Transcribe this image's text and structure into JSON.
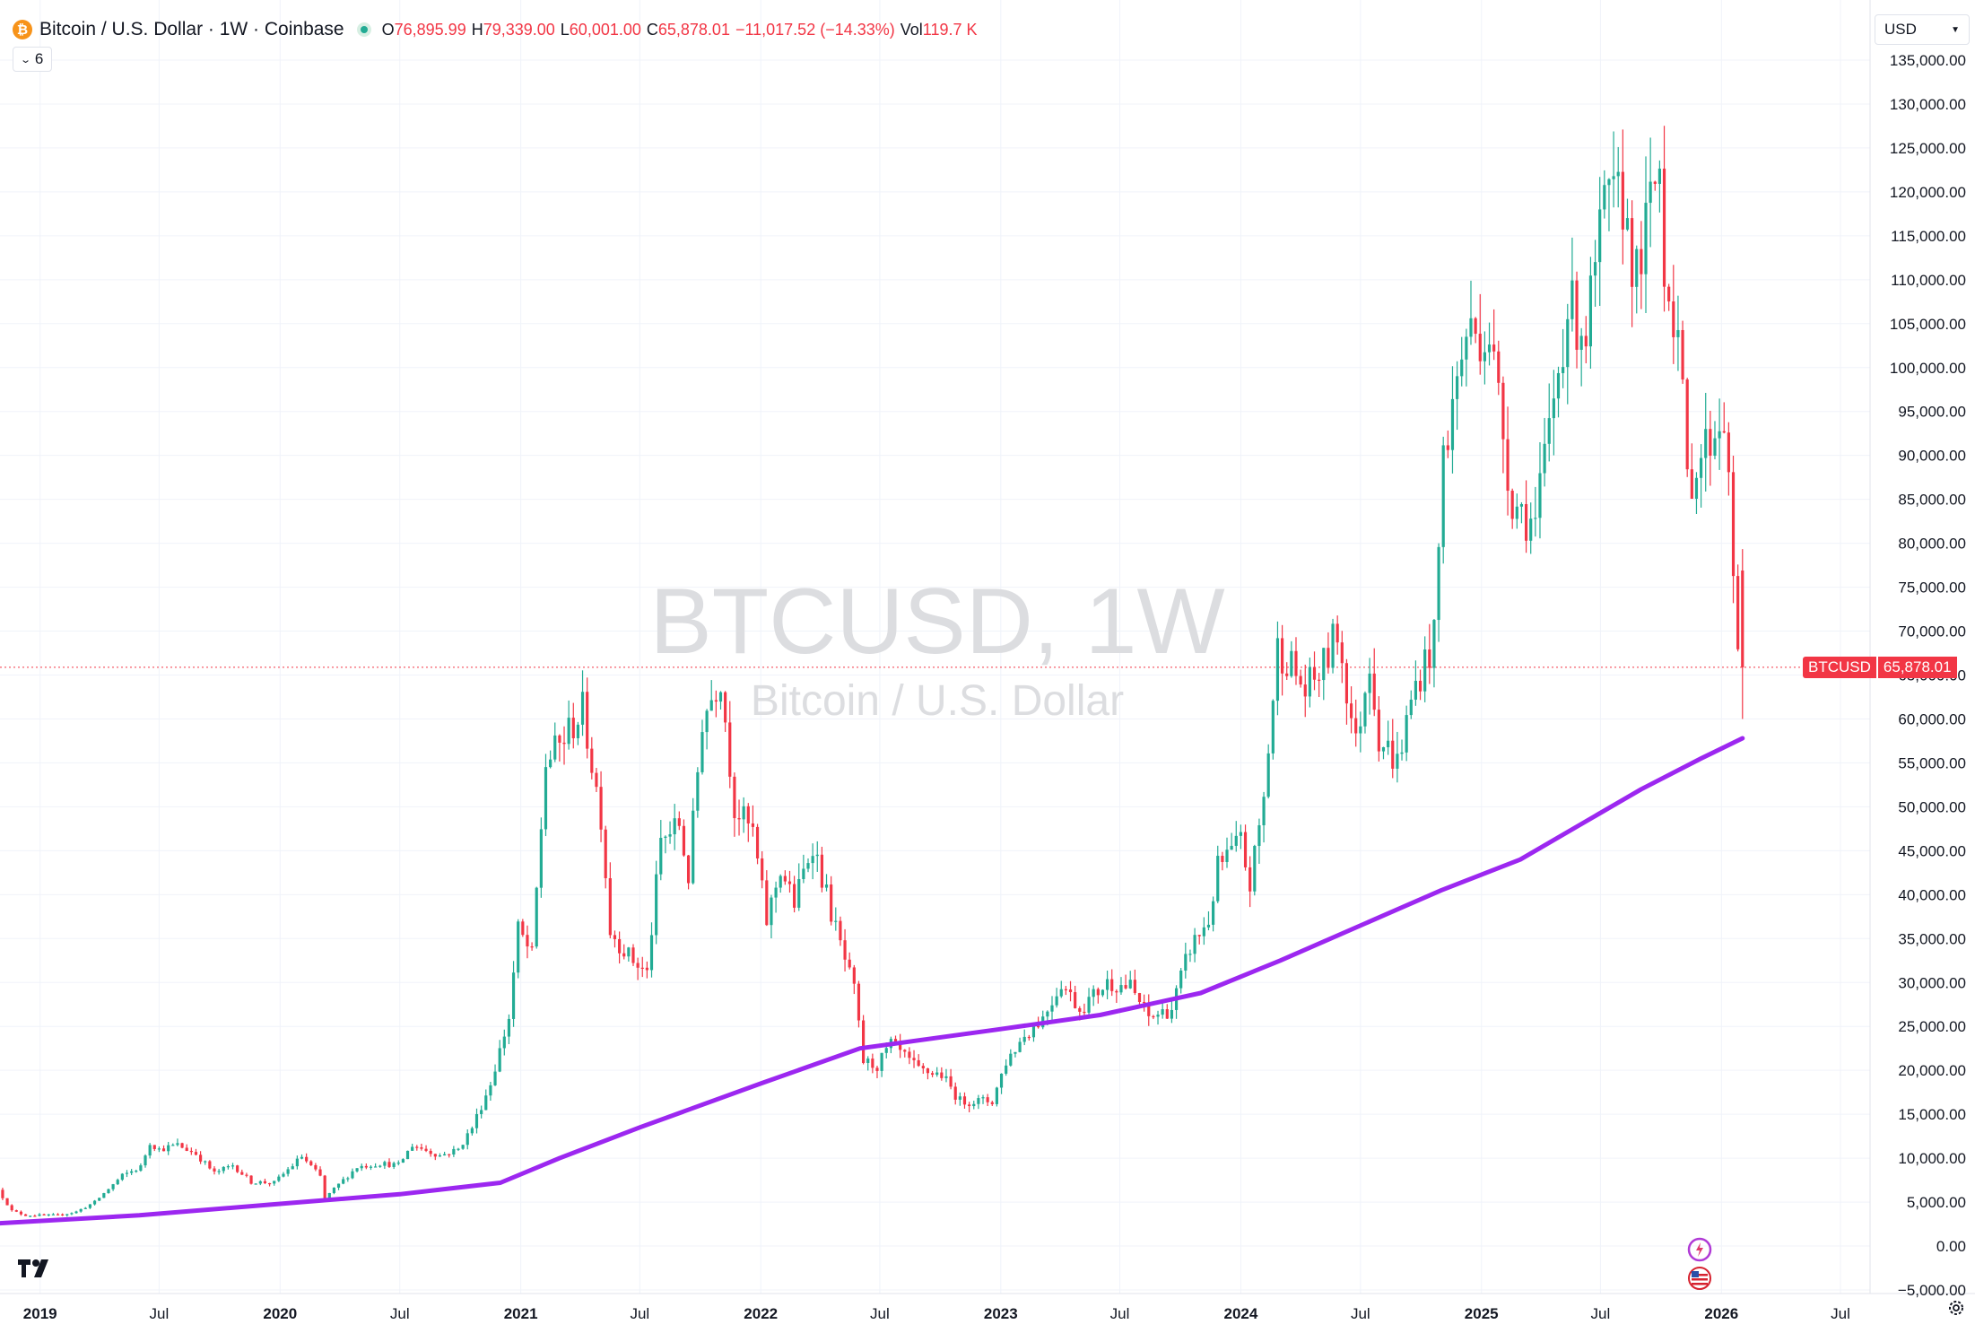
{
  "legend": {
    "symbol_title": "Bitcoin / U.S. Dollar · 1W · Coinbase",
    "open_key": "O",
    "open": "76,895.99",
    "high_key": "H",
    "high": "79,339.00",
    "low_key": "L",
    "low": "60,001.00",
    "close_key": "C",
    "close": "65,878.01",
    "change": "−11,017.52 (−14.33%)",
    "vol_key": "Vol",
    "vol": "119.7 K",
    "collapse_count": "6",
    "coin_glyph": "₿"
  },
  "currency": "USD",
  "watermark": {
    "main": "BTCUSD, 1W",
    "sub": "Bitcoin / U.S. Dollar"
  },
  "price_label": {
    "symbol": "BTCUSD",
    "price": "65,878.01"
  },
  "colors": {
    "up": "#22ab94",
    "down": "#f23645",
    "ma": "#9c27f0",
    "grid": "#f0f3fa",
    "axis_text": "#131722"
  },
  "icons": [
    "bitcoin-icon",
    "chevron-down-icon",
    "tradingview-logo-icon",
    "ai-sparkle-icon",
    "us-flag-icon",
    "gear-icon"
  ],
  "chart_data": {
    "type": "candlestick",
    "symbol": "BTCUSD",
    "interval": "1W",
    "exchange": "Coinbase",
    "y_axis": {
      "min": -5000,
      "max": 135000,
      "position": "right",
      "tick_labels": [
        "135,000.00",
        "130,000.00",
        "125,000.00",
        "120,000.00",
        "115,000.00",
        "110,000.00",
        "105,000.00",
        "100,000.00",
        "95,000.00",
        "90,000.00",
        "85,000.00",
        "80,000.00",
        "75,000.00",
        "70,000.00",
        "65,000.00",
        "60,000.00",
        "55,000.00",
        "50,000.00",
        "45,000.00",
        "40,000.00",
        "35,000.00",
        "30,000.00",
        "25,000.00",
        "20,000.00",
        "15,000.00",
        "10,000.00",
        "5,000.00",
        "0.00",
        "−5,000.00"
      ]
    },
    "x_axis": {
      "labels": [
        "2019",
        "Jul",
        "2020",
        "Jul",
        "2021",
        "Jul",
        "2022",
        "Jul",
        "2023",
        "Jul",
        "2024",
        "Jul",
        "2025",
        "Jul",
        "2026",
        "Jul"
      ],
      "label_dates": [
        "2019-01-01",
        "2019-07-01",
        "2020-01-01",
        "2020-07-01",
        "2021-01-01",
        "2021-07-01",
        "2022-01-01",
        "2022-07-01",
        "2023-01-01",
        "2023-07-01",
        "2024-01-01",
        "2024-07-01",
        "2025-01-01",
        "2025-07-01",
        "2026-01-01",
        "2026-07-01"
      ],
      "range": [
        "2018-11-01",
        "2026-08-15"
      ]
    },
    "price_series": {
      "name": "BTCUSD",
      "points": [
        [
          "2018-11-05",
          6400
        ],
        [
          "2018-11-26",
          4000
        ],
        [
          "2018-12-17",
          3500
        ],
        [
          "2019-02-04",
          3500
        ],
        [
          "2019-03-04",
          3900
        ],
        [
          "2019-04-01",
          5000
        ],
        [
          "2019-05-13",
          8000
        ],
        [
          "2019-06-10",
          9000
        ],
        [
          "2019-06-24",
          11800
        ],
        [
          "2019-07-08",
          11000
        ],
        [
          "2019-08-05",
          11500
        ],
        [
          "2019-09-02",
          10500
        ],
        [
          "2019-09-30",
          8300
        ],
        [
          "2019-10-28",
          9200
        ],
        [
          "2019-11-25",
          7300
        ],
        [
          "2019-12-30",
          7200
        ],
        [
          "2020-02-10",
          10200
        ],
        [
          "2020-03-09",
          7900
        ],
        [
          "2020-03-16",
          5400
        ],
        [
          "2020-04-06",
          7000
        ],
        [
          "2020-05-04",
          9000
        ],
        [
          "2020-06-08",
          9400
        ],
        [
          "2020-07-06",
          9200
        ],
        [
          "2020-07-27",
          11500
        ],
        [
          "2020-09-07",
          10300
        ],
        [
          "2020-10-05",
          11000
        ],
        [
          "2020-10-26",
          13500
        ],
        [
          "2020-11-23",
          18500
        ],
        [
          "2020-12-21",
          26000
        ],
        [
          "2021-01-04",
          36000
        ],
        [
          "2021-01-25",
          33000
        ],
        [
          "2021-02-15",
          55000
        ],
        [
          "2021-03-08",
          57000
        ],
        [
          "2021-04-12",
          61000
        ],
        [
          "2021-05-10",
          49000
        ],
        [
          "2021-05-24",
          36000
        ],
        [
          "2021-06-21",
          33000
        ],
        [
          "2021-07-19",
          31000
        ],
        [
          "2021-08-09",
          46000
        ],
        [
          "2021-09-06",
          48000
        ],
        [
          "2021-09-20",
          42000
        ],
        [
          "2021-10-11",
          60000
        ],
        [
          "2021-11-08",
          65000
        ],
        [
          "2021-11-29",
          50000
        ],
        [
          "2021-12-27",
          47000
        ],
        [
          "2022-01-17",
          37000
        ],
        [
          "2022-02-07",
          43000
        ],
        [
          "2022-02-28",
          39000
        ],
        [
          "2022-03-28",
          46000
        ],
        [
          "2022-05-02",
          36000
        ],
        [
          "2022-05-30",
          29000
        ],
        [
          "2022-06-13",
          21000
        ],
        [
          "2022-07-04",
          20500
        ],
        [
          "2022-07-25",
          23000
        ],
        [
          "2022-09-05",
          20000
        ],
        [
          "2022-10-10",
          19500
        ],
        [
          "2022-11-07",
          16500
        ],
        [
          "2022-12-26",
          16500
        ],
        [
          "2023-01-16",
          21000
        ],
        [
          "2023-02-13",
          24000
        ],
        [
          "2023-03-13",
          26000
        ],
        [
          "2023-04-10",
          30000
        ],
        [
          "2023-05-08",
          27000
        ],
        [
          "2023-06-19",
          30000
        ],
        [
          "2023-07-24",
          29500
        ],
        [
          "2023-08-21",
          26000
        ],
        [
          "2023-09-25",
          27000
        ],
        [
          "2023-10-23",
          34000
        ],
        [
          "2023-11-20",
          37000
        ],
        [
          "2023-12-04",
          43000
        ],
        [
          "2024-01-08",
          46000
        ],
        [
          "2024-01-22",
          41000
        ],
        [
          "2024-02-12",
          51000
        ],
        [
          "2024-03-04",
          68000
        ],
        [
          "2024-03-18",
          67000
        ],
        [
          "2024-04-15",
          63000
        ],
        [
          "2024-05-13",
          66000
        ],
        [
          "2024-06-03",
          70000
        ],
        [
          "2024-07-01",
          57000
        ],
        [
          "2024-07-22",
          67000
        ],
        [
          "2024-08-05",
          58000
        ],
        [
          "2024-09-02",
          55000
        ],
        [
          "2024-09-30",
          64000
        ],
        [
          "2024-10-28",
          69000
        ],
        [
          "2024-11-11",
          90000
        ],
        [
          "2024-12-16",
          104000
        ],
        [
          "2025-01-20",
          104000
        ],
        [
          "2025-02-24",
          85000
        ],
        [
          "2025-03-31",
          82000
        ],
        [
          "2025-04-21",
          93000
        ],
        [
          "2025-05-19",
          107000
        ],
        [
          "2025-06-16",
          104000
        ],
        [
          "2025-07-14",
          118000
        ],
        [
          "2025-08-11",
          119000
        ],
        [
          "2025-09-01",
          110000
        ],
        [
          "2025-09-29",
          121000
        ],
        [
          "2025-10-06",
          123000
        ],
        [
          "2025-10-13",
          112000
        ],
        [
          "2025-11-03",
          104000
        ],
        [
          "2025-11-17",
          87000
        ],
        [
          "2025-12-08",
          90000
        ],
        [
          "2026-01-12",
          95000
        ],
        [
          "2026-01-26",
          77000
        ],
        [
          "2026-02-02",
          65878
        ]
      ]
    },
    "moving_average": {
      "points": [
        [
          "2018-11-01",
          2600
        ],
        [
          "2019-06-01",
          3500
        ],
        [
          "2020-01-01",
          4800
        ],
        [
          "2020-07-01",
          5900
        ],
        [
          "2020-12-01",
          7200
        ],
        [
          "2021-03-01",
          10000
        ],
        [
          "2021-07-01",
          13500
        ],
        [
          "2022-01-01",
          18500
        ],
        [
          "2022-06-01",
          22500
        ],
        [
          "2023-01-01",
          24700
        ],
        [
          "2023-06-01",
          26300
        ],
        [
          "2023-11-01",
          28800
        ],
        [
          "2024-03-01",
          32500
        ],
        [
          "2024-08-01",
          37500
        ],
        [
          "2024-11-01",
          40500
        ],
        [
          "2025-03-01",
          44000
        ],
        [
          "2025-06-01",
          48000
        ],
        [
          "2025-09-01",
          52000
        ],
        [
          "2025-12-01",
          55500
        ],
        [
          "2026-02-02",
          57800
        ]
      ]
    },
    "last_close": 65878.01
  }
}
